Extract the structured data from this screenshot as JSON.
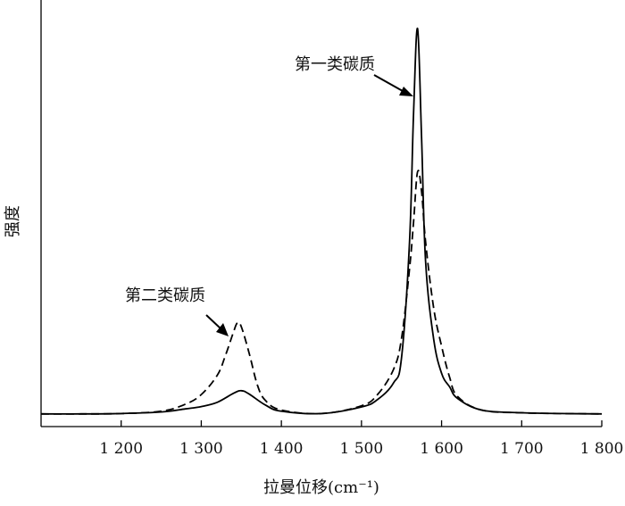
{
  "chart_data": {
    "type": "line",
    "xlabel": "拉曼位移(cm⁻¹)",
    "ylabel": "强度",
    "xlim": [
      1100,
      1800
    ],
    "ylim": [
      0,
      100
    ],
    "grid": false,
    "x_ticks": [
      1200,
      1300,
      1400,
      1500,
      1600,
      1700,
      1800
    ],
    "x_tick_labels": [
      "1 200",
      "1 300",
      "1 400",
      "1 500",
      "1 600",
      "1 700",
      "1 800"
    ],
    "series": [
      {
        "style": "solid",
        "x": [
          1100,
          1150,
          1200,
          1250,
          1280,
          1300,
          1320,
          1340,
          1350,
          1360,
          1380,
          1400,
          1450,
          1500,
          1520,
          1540,
          1550,
          1560,
          1565,
          1570,
          1575,
          1580,
          1590,
          1600,
          1610,
          1620,
          1650,
          1700,
          1750,
          1800
        ],
        "y": [
          0.5,
          0.5,
          0.6,
          1.0,
          1.8,
          2.4,
          3.5,
          5.8,
          6.5,
          5.6,
          2.8,
          1.2,
          0.6,
          2.3,
          4.2,
          8.5,
          15.0,
          45.0,
          78.0,
          100.0,
          72.0,
          40.0,
          20.0,
          11.0,
          7.5,
          4.5,
          1.5,
          0.8,
          0.6,
          0.5
        ]
      },
      {
        "style": "dashed",
        "x": [
          1100,
          1150,
          1200,
          1250,
          1280,
          1300,
          1320,
          1330,
          1340,
          1345,
          1350,
          1360,
          1370,
          1380,
          1400,
          1450,
          1500,
          1520,
          1540,
          1550,
          1560,
          1565,
          1570,
          1575,
          1580,
          1590,
          1600,
          1610,
          1620,
          1650,
          1700,
          1750,
          1800
        ],
        "y": [
          0.5,
          0.5,
          0.6,
          1.2,
          3.0,
          5.5,
          10.5,
          15.5,
          21.5,
          24.0,
          23.0,
          16.0,
          8.0,
          4.0,
          1.5,
          0.6,
          2.6,
          5.5,
          12.0,
          20.0,
          38.0,
          50.0,
          63.0,
          58.0,
          45.0,
          28.0,
          18.0,
          10.0,
          5.0,
          1.5,
          0.8,
          0.6,
          0.5
        ]
      }
    ],
    "annotations": [
      {
        "text": "第一类碳质",
        "target_x": 1568,
        "target_y": 82
      },
      {
        "text": "第二类碳质",
        "target_x": 1338,
        "target_y": 21
      }
    ]
  }
}
